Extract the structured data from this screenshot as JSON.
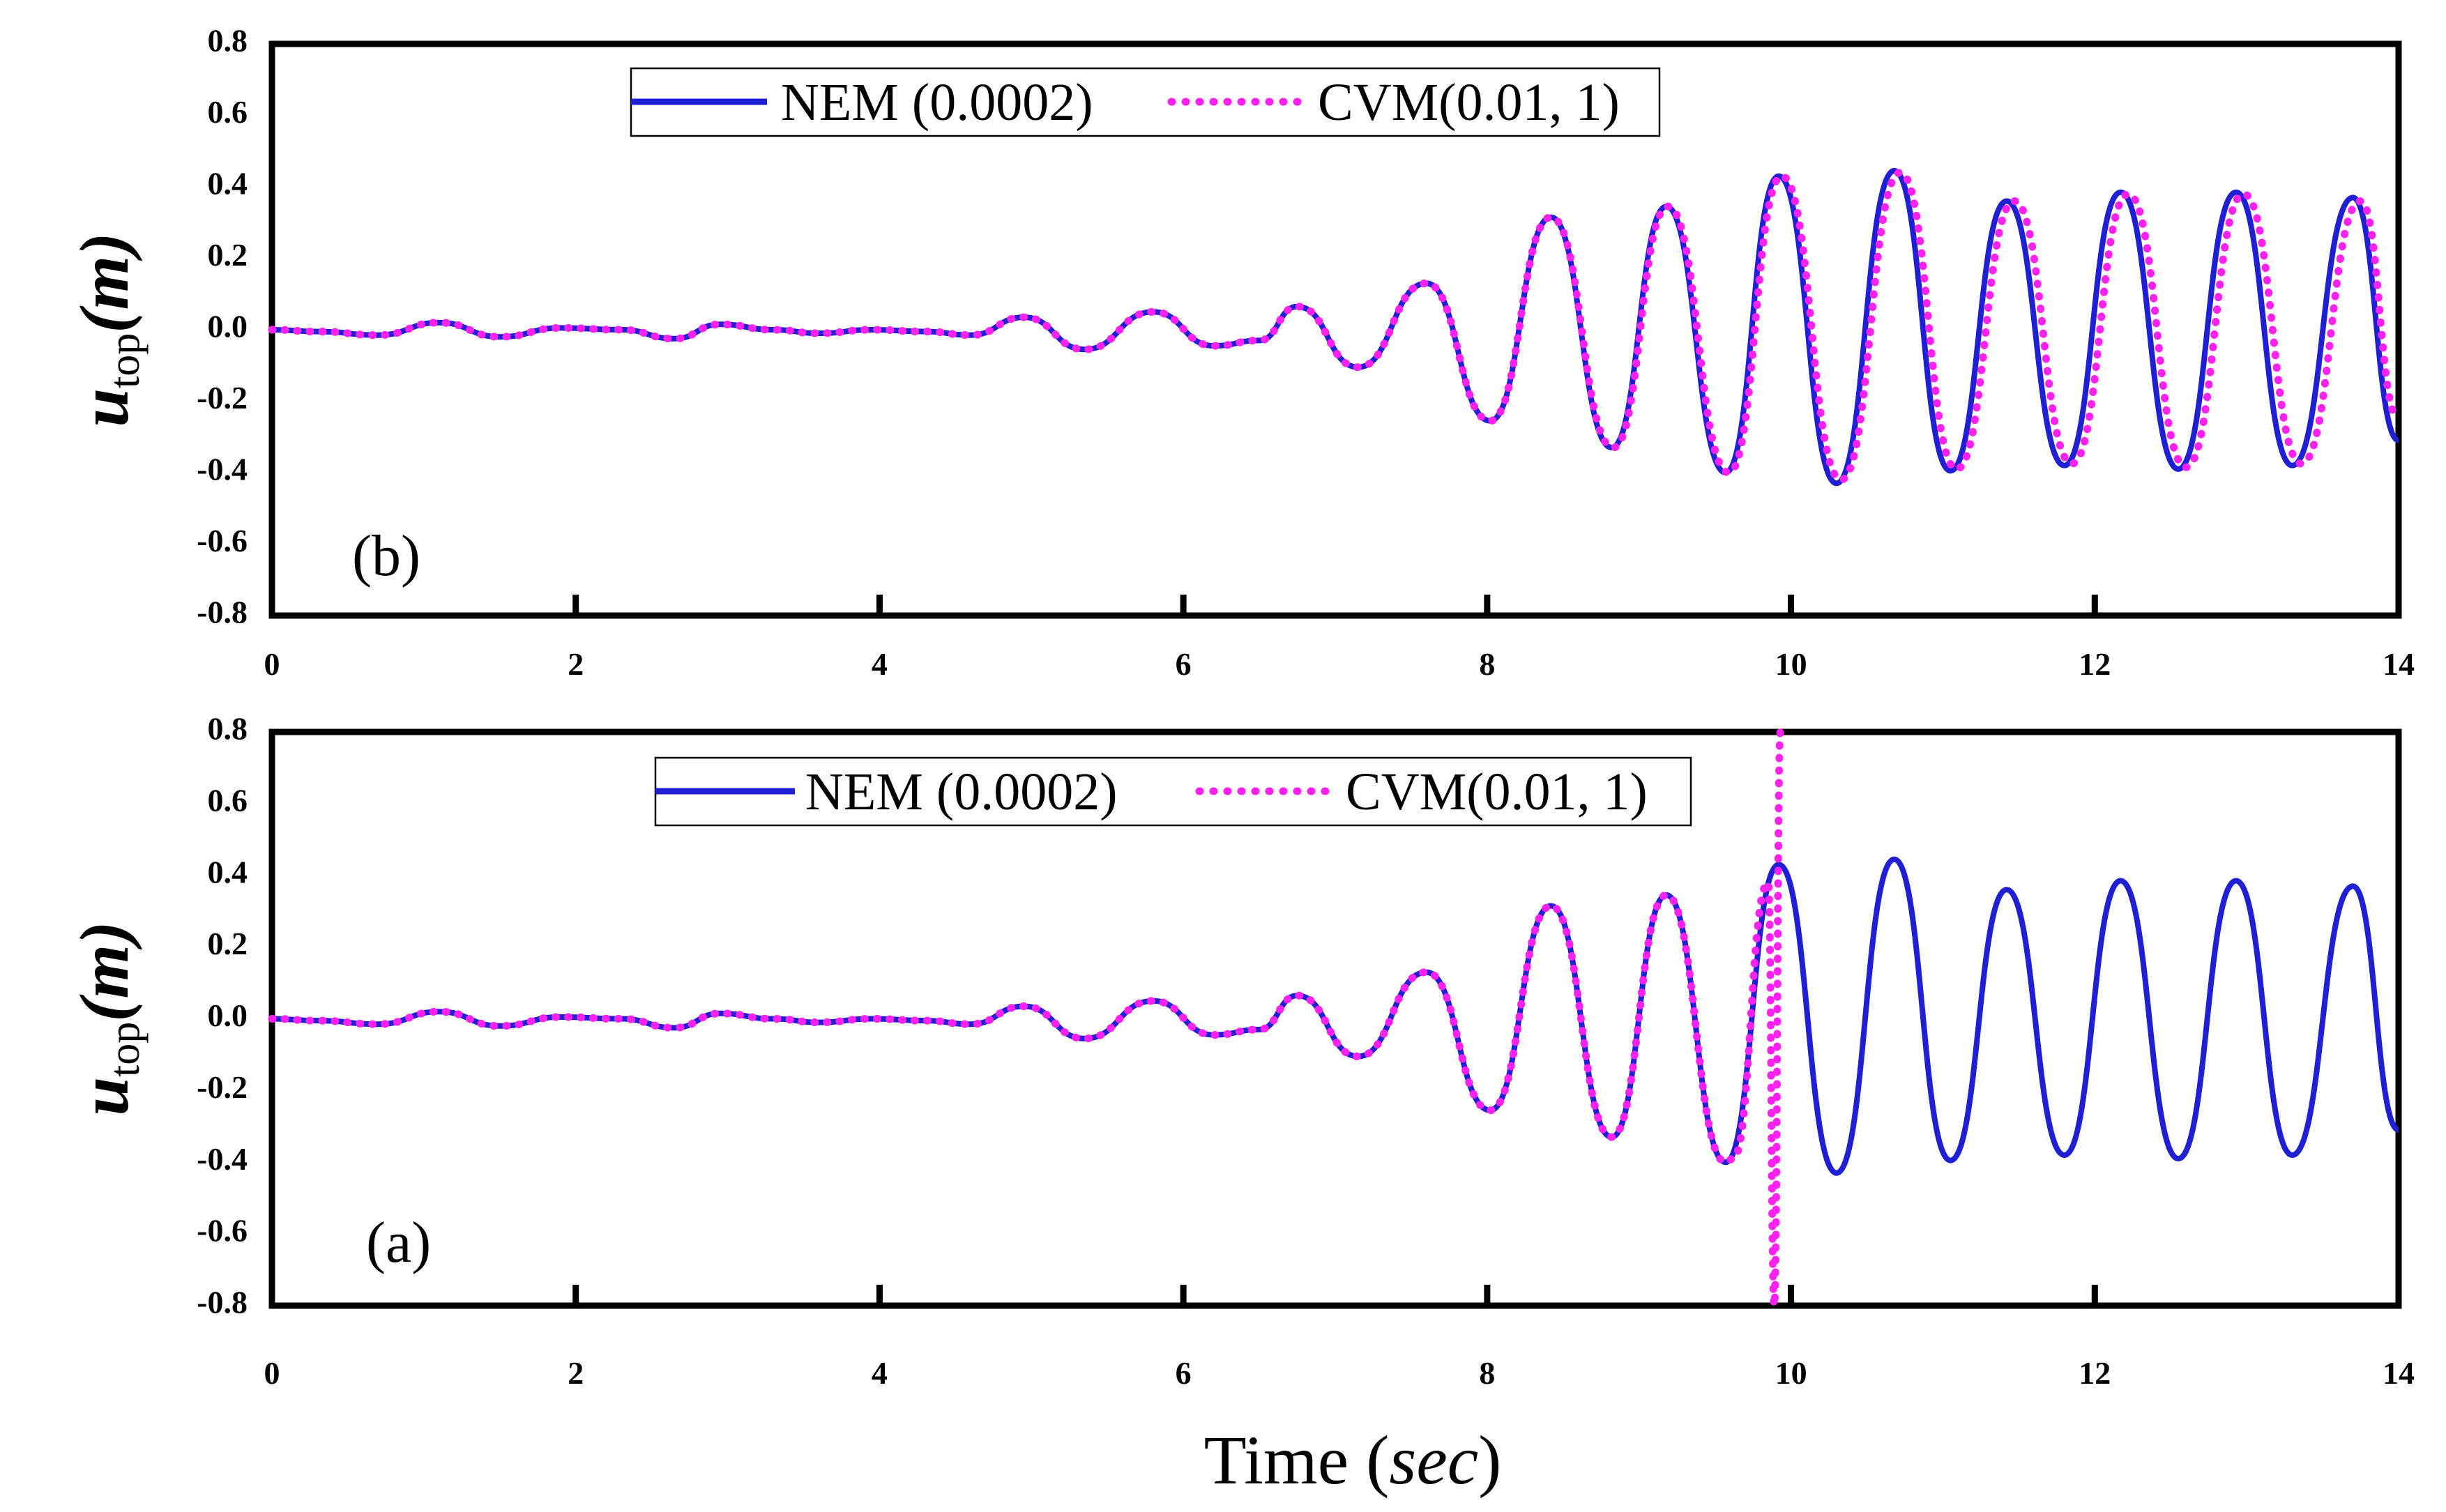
{
  "chart_data": [
    {
      "panel": "(b)",
      "type": "line",
      "xlim": [
        0,
        14
      ],
      "ylim": [
        -0.8,
        0.8
      ],
      "xticks": [
        "0",
        "2",
        "4",
        "6",
        "8",
        "10",
        "12",
        "14"
      ],
      "yticks": [
        "0.8",
        "0.6",
        "0.4",
        "0.2",
        "0.0",
        "-0.2",
        "-0.4",
        "-0.6",
        "-0.8"
      ],
      "ylabel": {
        "main": "u",
        "sub": "top",
        "unit": "m"
      },
      "xlabel": "",
      "legend": [
        "NEM (0.0002)",
        "CVM(0.01, 1)"
      ],
      "series": [
        {
          "name": "NEM (0.0002)",
          "color": "#1f1fd6",
          "style": "solid",
          "x": [
            0,
            0.3,
            0.7,
            1.1,
            1.5,
            1.9,
            2.3,
            2.65,
            2.95,
            3.3,
            3.6,
            3.95,
            4.3,
            4.6,
            4.95,
            5.35,
            5.8,
            6.2,
            6.5,
            6.75,
            7.15,
            7.6,
            8.02,
            8.42,
            8.82,
            9.18,
            9.57,
            9.92,
            10.3,
            10.68,
            11.05,
            11.42,
            11.8,
            12.17,
            12.55,
            12.93,
            13.3,
            13.7,
            14.0
          ],
          "y": [
            0,
            -0.005,
            -0.015,
            0.02,
            -0.02,
            0.005,
            0.0,
            -0.025,
            0.015,
            0.0,
            -0.01,
            0.0,
            -0.005,
            -0.015,
            0.035,
            -0.055,
            0.05,
            -0.045,
            -0.03,
            0.065,
            -0.105,
            0.13,
            -0.255,
            0.315,
            -0.33,
            0.345,
            -0.4,
            0.43,
            -0.43,
            0.445,
            -0.395,
            0.36,
            -0.38,
            0.385,
            -0.39,
            0.385,
            -0.38,
            0.37,
            -0.31
          ]
        },
        {
          "name": "CVM(0.01, 1)",
          "color": "#ff22ee",
          "style": "dotted",
          "x": [
            0,
            0.3,
            0.7,
            1.1,
            1.5,
            1.9,
            2.3,
            2.65,
            2.95,
            3.3,
            3.6,
            3.95,
            4.3,
            4.6,
            4.95,
            5.35,
            5.8,
            6.2,
            6.5,
            6.75,
            7.15,
            7.6,
            8.02,
            8.42,
            8.83,
            9.19,
            9.59,
            9.94,
            10.33,
            10.72,
            11.09,
            11.47,
            11.85,
            12.22,
            12.6,
            12.98,
            13.36,
            13.75,
            14.0
          ],
          "y": [
            0,
            -0.005,
            -0.015,
            0.02,
            -0.02,
            0.005,
            0.0,
            -0.025,
            0.015,
            0.0,
            -0.01,
            0.0,
            -0.005,
            -0.015,
            0.035,
            -0.055,
            0.05,
            -0.045,
            -0.03,
            0.065,
            -0.105,
            0.13,
            -0.255,
            0.315,
            -0.33,
            0.345,
            -0.4,
            0.43,
            -0.42,
            0.44,
            -0.39,
            0.36,
            -0.375,
            0.38,
            -0.385,
            0.38,
            -0.375,
            0.36,
            -0.25
          ]
        }
      ]
    },
    {
      "panel": "(a)",
      "type": "line",
      "xlim": [
        0,
        14
      ],
      "ylim": [
        -0.8,
        0.8
      ],
      "xticks": [
        "0",
        "2",
        "4",
        "6",
        "8",
        "10",
        "12",
        "14"
      ],
      "yticks": [
        "0.8",
        "0.6",
        "0.4",
        "0.2",
        "0.0",
        "-0.2",
        "-0.4",
        "-0.6",
        "-0.8"
      ],
      "ylabel": {
        "main": "u",
        "sub": "top",
        "unit": "m"
      },
      "xlabel": "Time",
      "xlabel_unit": "sec",
      "legend": [
        "NEM (0.0002)",
        "CVM(0.01, 1)"
      ],
      "series": [
        {
          "name": "NEM (0.0002)",
          "color": "#1f1fd6",
          "style": "solid",
          "x": [
            0,
            0.3,
            0.7,
            1.1,
            1.5,
            1.9,
            2.3,
            2.65,
            2.95,
            3.3,
            3.6,
            3.95,
            4.3,
            4.6,
            4.95,
            5.35,
            5.8,
            6.2,
            6.5,
            6.75,
            7.15,
            7.6,
            8.02,
            8.42,
            8.82,
            9.18,
            9.57,
            9.92,
            10.3,
            10.68,
            11.05,
            11.42,
            11.8,
            12.17,
            12.55,
            12.93,
            13.3,
            13.7,
            14.0
          ],
          "y": [
            0,
            -0.005,
            -0.015,
            0.02,
            -0.02,
            0.005,
            0.0,
            -0.025,
            0.015,
            0.0,
            -0.01,
            0.0,
            -0.005,
            -0.015,
            0.035,
            -0.055,
            0.05,
            -0.045,
            -0.03,
            0.065,
            -0.105,
            0.13,
            -0.255,
            0.315,
            -0.33,
            0.345,
            -0.4,
            0.43,
            -0.43,
            0.445,
            -0.395,
            0.36,
            -0.38,
            0.385,
            -0.39,
            0.385,
            -0.38,
            0.37,
            -0.31
          ]
        },
        {
          "name": "CVM(0.01, 1)",
          "color": "#ff22ee",
          "style": "dotted",
          "x": [
            0,
            0.3,
            0.7,
            1.1,
            1.5,
            1.9,
            2.3,
            2.65,
            2.95,
            3.3,
            3.6,
            3.95,
            4.3,
            4.6,
            4.95,
            5.35,
            5.8,
            6.2,
            6.5,
            6.75,
            7.15,
            7.6,
            8.02,
            8.42,
            8.82,
            9.18,
            9.57,
            9.62,
            9.85,
            9.89,
            9.93
          ],
          "y": [
            0,
            -0.005,
            -0.015,
            0.02,
            -0.02,
            0.005,
            0.0,
            -0.025,
            0.015,
            0.0,
            -0.01,
            0.0,
            -0.005,
            -0.015,
            0.035,
            -0.055,
            0.05,
            -0.045,
            -0.03,
            0.065,
            -0.105,
            0.13,
            -0.255,
            0.315,
            -0.33,
            0.345,
            -0.4,
            -0.39,
            0.38,
            -0.8,
            0.8
          ]
        }
      ]
    }
  ]
}
